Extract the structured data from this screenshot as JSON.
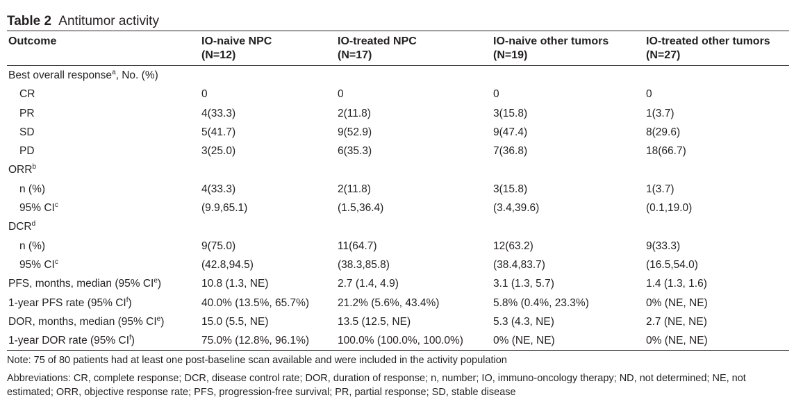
{
  "table": {
    "label": "Table 2",
    "title": "Antitumor activity",
    "columns": [
      {
        "name": "Outcome",
        "n": ""
      },
      {
        "name": "IO-naive NPC",
        "n": "(N=12)"
      },
      {
        "name": "IO-treated NPC",
        "n": "(N=17)"
      },
      {
        "name": "IO-naive other tumors",
        "n": "(N=19)"
      },
      {
        "name": "IO-treated other tumors",
        "n": "(N=27)"
      }
    ],
    "rows": [
      {
        "label": "Best overall response",
        "sup": "a",
        "suffix": ", No. (%)",
        "values": [
          "",
          "",
          "",
          ""
        ]
      },
      {
        "label": "CR",
        "indent": true,
        "values": [
          "0",
          "0",
          "0",
          "0"
        ]
      },
      {
        "label": "PR",
        "indent": true,
        "values": [
          "4(33.3)",
          "2(11.8)",
          "3(15.8)",
          "1(3.7)"
        ]
      },
      {
        "label": "SD",
        "indent": true,
        "values": [
          "5(41.7)",
          "9(52.9)",
          "9(47.4)",
          "8(29.6)"
        ]
      },
      {
        "label": "PD",
        "indent": true,
        "values": [
          "3(25.0)",
          "6(35.3)",
          "7(36.8)",
          "18(66.7)"
        ]
      },
      {
        "label": "ORR",
        "sup": "b",
        "values": [
          "",
          "",
          "",
          ""
        ]
      },
      {
        "label": "n (%)",
        "indent": true,
        "values": [
          "4(33.3)",
          "2(11.8)",
          "3(15.8)",
          "1(3.7)"
        ]
      },
      {
        "label": "95% CI",
        "sup": "c",
        "indent": true,
        "values": [
          "(9.9,65.1)",
          "(1.5,36.4)",
          "(3.4,39.6)",
          "(0.1,19.0)"
        ]
      },
      {
        "label": "DCR",
        "sup": "d",
        "values": [
          "",
          "",
          "",
          ""
        ]
      },
      {
        "label": "n (%)",
        "indent": true,
        "values": [
          "9(75.0)",
          "11(64.7)",
          "12(63.2)",
          "9(33.3)"
        ]
      },
      {
        "label": "95% CI",
        "sup": "c",
        "indent": true,
        "values": [
          "(42.8,94.5)",
          "(38.3,85.8)",
          "(38.4,83.7)",
          "(16.5,54.0)"
        ]
      },
      {
        "label": "PFS, months, median (95% CI",
        "sup": "e",
        "suffix": ")",
        "values": [
          "10.8 (1.3, NE)",
          "2.7 (1.4, 4.9)",
          "3.1 (1.3, 5.7)",
          "1.4 (1.3, 1.6)"
        ]
      },
      {
        "label": "1-year PFS rate (95% CI",
        "sup": "f",
        "suffix": ")",
        "values": [
          "40.0% (13.5%, 65.7%)",
          "21.2% (5.6%, 43.4%)",
          "5.8% (0.4%, 23.3%)",
          "0% (NE, NE)"
        ]
      },
      {
        "label": "DOR, months, median (95% CI",
        "sup": "e",
        "suffix": ")",
        "values": [
          "15.0 (5.5, NE)",
          "13.5 (12.5, NE)",
          "5.3 (4.3, NE)",
          "2.7 (NE, NE)"
        ]
      },
      {
        "label": "1-year DOR rate (95% CI",
        "sup": "f",
        "suffix": ")",
        "values": [
          "75.0% (12.8%, 96.1%)",
          "100.0% (100.0%, 100.0%)",
          "0% (NE, NE)",
          "0% (NE, NE)"
        ]
      }
    ]
  },
  "notes": {
    "note": "Note: 75 of 80 patients had at least one post-baseline scan available and were included in the activity population",
    "abbreviations": "Abbreviations: CR, complete response; DCR, disease control rate; DOR, duration of response; n, number; IO, immuno-oncology therapy; ND, not determined; NE, not estimated; ORR, objective response rate; PFS, progression-free survival; PR, partial response; SD, stable disease"
  }
}
